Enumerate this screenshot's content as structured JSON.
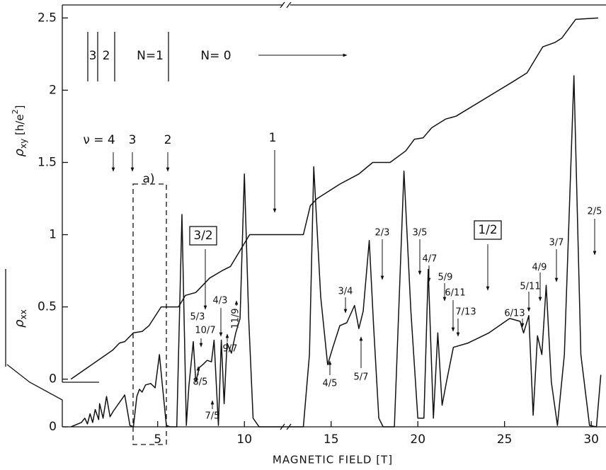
{
  "chart_data": {
    "type": "line",
    "x_label": "MAGNETIC FIELD [T]",
    "y_label": [
      "ρ",
      "xy",
      " [h/e",
      "2",
      "]"
    ],
    "y2_label": [
      "ρ",
      "xx"
    ],
    "xlim": [
      -0.5,
      30.85
    ],
    "xticks": [
      5,
      10,
      15,
      20,
      25,
      30
    ],
    "ylim": [
      -0.33,
      2.59
    ],
    "yticks": [
      0,
      0.5,
      1,
      1.5,
      2,
      2.5
    ],
    "y2lim": [
      0,
      2.92
    ],
    "y2ticks": [
      0
    ],
    "series": [
      {
        "color": "#111111",
        "x": [
          0,
          2.4,
          2.8,
          3.1,
          3.6,
          4.1,
          4.5,
          5.2,
          6.2,
          6.6,
          7.2,
          8,
          8.7,
          9.2,
          10.3,
          13.4,
          13.8,
          14.2,
          15.5,
          16.6,
          17.4,
          18.4,
          19.3,
          19.8,
          20.3,
          20.8,
          21.6,
          22.2,
          25.5,
          26.3,
          27.2,
          27.9,
          28.3,
          29.1,
          30.4
        ],
        "values": [
          0,
          0.2,
          0.25,
          0.26,
          0.32,
          0.33,
          0.37,
          0.5,
          0.5,
          0.58,
          0.6,
          0.7,
          0.75,
          0.78,
          1.0,
          1.0,
          1.2,
          1.25,
          1.35,
          1.42,
          1.5,
          1.5,
          1.58,
          1.66,
          1.67,
          1.74,
          1.8,
          1.82,
          2.06,
          2.12,
          2.3,
          2.33,
          2.36,
          2.49,
          2.5
        ]
      },
      {
        "color": "#111111",
        "axis": "y2",
        "x": [
          0,
          0.4,
          0.6,
          0.8,
          0.95,
          1.1,
          1.25,
          1.4,
          1.6,
          1.65,
          1.85,
          2.05,
          2.25,
          2.45,
          3.1,
          3.4,
          3.6,
          3.8,
          3.95,
          4.1,
          4.3,
          4.6,
          4.85,
          5.1,
          5.25,
          5.5,
          5.7,
          6.1,
          6.4,
          6.65,
          6.8,
          7.05,
          7.2,
          7.4,
          7.6,
          7.85,
          8.1,
          8.25,
          8.5,
          8.67,
          8.83,
          9.0,
          9.25,
          9.5,
          9.75,
          10.0,
          10.25,
          10.5,
          10.85,
          12.7,
          13.4,
          13.75,
          14.0,
          14.4,
          14.8,
          15.1,
          15.5,
          15.9,
          16.35,
          16.6,
          16.85,
          17.2,
          17.45,
          17.75,
          18.0,
          18.65,
          19.2,
          19.6,
          20.0,
          20.35,
          20.6,
          20.9,
          21.15,
          21.4,
          21.65,
          22.05,
          22.9,
          24.1,
          25.3,
          25.9,
          26.1,
          26.4,
          26.65,
          26.9,
          27.15,
          27.4,
          27.7,
          28.05,
          28.45,
          29.0,
          29.4,
          29.9,
          30.3,
          30.55
        ],
        "values": [
          0,
          0.02,
          0.03,
          0.06,
          0.02,
          0.09,
          0.03,
          0.12,
          0.05,
          0.16,
          0.06,
          0.21,
          0.07,
          0.11,
          0.22,
          0.01,
          0,
          0.21,
          0.26,
          0.24,
          0.29,
          0.3,
          0.27,
          0.5,
          0.31,
          0.01,
          0,
          0,
          1.47,
          0.01,
          0.28,
          0.59,
          0.31,
          0.41,
          0.43,
          0.46,
          0.45,
          0.6,
          0.01,
          0.6,
          0.16,
          0.58,
          0.51,
          0.65,
          0.75,
          1.75,
          0.75,
          0.06,
          0,
          0,
          0,
          0.5,
          1.8,
          0.9,
          0.43,
          0.55,
          0.7,
          0.72,
          0.84,
          0.68,
          0.8,
          1.29,
          0.7,
          0.06,
          0,
          0,
          1.77,
          0.8,
          0.06,
          0.06,
          1.09,
          0.06,
          0.65,
          0.15,
          0.31,
          0.55,
          0.58,
          0.65,
          0.75,
          0.73,
          0.65,
          0.77,
          0.08,
          0.63,
          0.5,
          0.98,
          0.31,
          0.01,
          0.5,
          2.43,
          0.5,
          0.01,
          0,
          0.36
        ]
      }
    ],
    "annotations": [
      "3",
      "2",
      "N=1",
      "N= 0",
      "ν = 4",
      "3",
      "2",
      "1",
      "a)",
      "3/2",
      "1/2",
      "5/3",
      "4/3",
      "10/7",
      "11/9",
      "9/7",
      "8/5",
      "7/5",
      "3/4",
      "4/5",
      "5/7",
      "2/3",
      "3/5",
      "4/7",
      "5/9",
      "6/11",
      "7/13",
      "6/13",
      "5/11",
      "4/9",
      "3/7",
      "2/5"
    ]
  }
}
